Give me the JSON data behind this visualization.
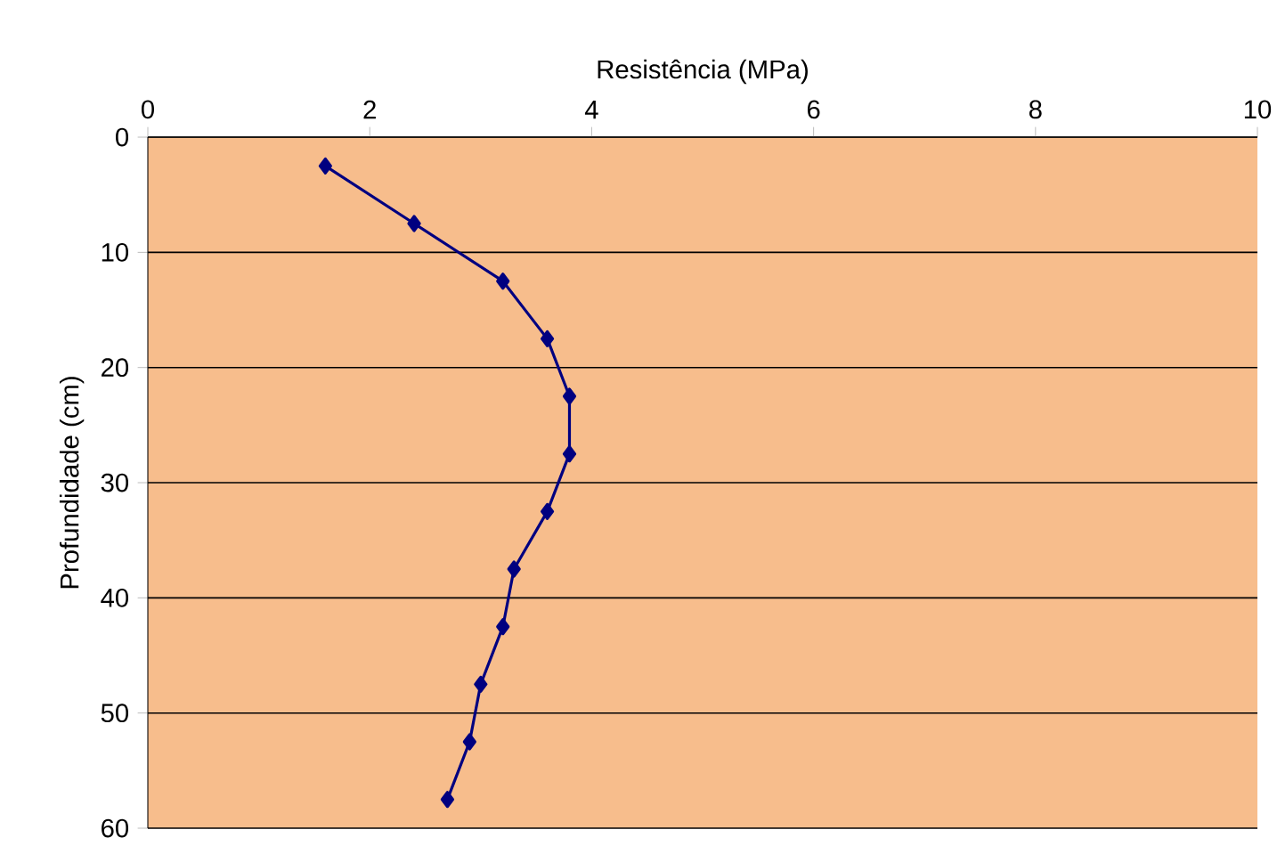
{
  "chart_data": {
    "type": "line",
    "xlabel": "Resistência (MPa)",
    "ylabel": "Profundidade (cm)",
    "xlim": [
      0,
      10
    ],
    "xticks": [
      0,
      2,
      4,
      6,
      8,
      10
    ],
    "ylim": [
      60,
      0
    ],
    "yticks": [
      0,
      10,
      20,
      30,
      40,
      50,
      60
    ],
    "grid": "y",
    "marker": "diamond",
    "line_style": "solid",
    "series": [
      {
        "color": "#000080",
        "x": [
          1.6,
          2.4,
          3.2,
          3.6,
          3.8,
          3.8,
          3.6,
          3.3,
          3.2,
          3.0,
          2.9,
          2.7
        ],
        "values": [
          2.5,
          7.5,
          12.5,
          17.5,
          22.5,
          27.5,
          32.5,
          37.5,
          42.5,
          47.5,
          52.5,
          57.5
        ]
      }
    ]
  }
}
